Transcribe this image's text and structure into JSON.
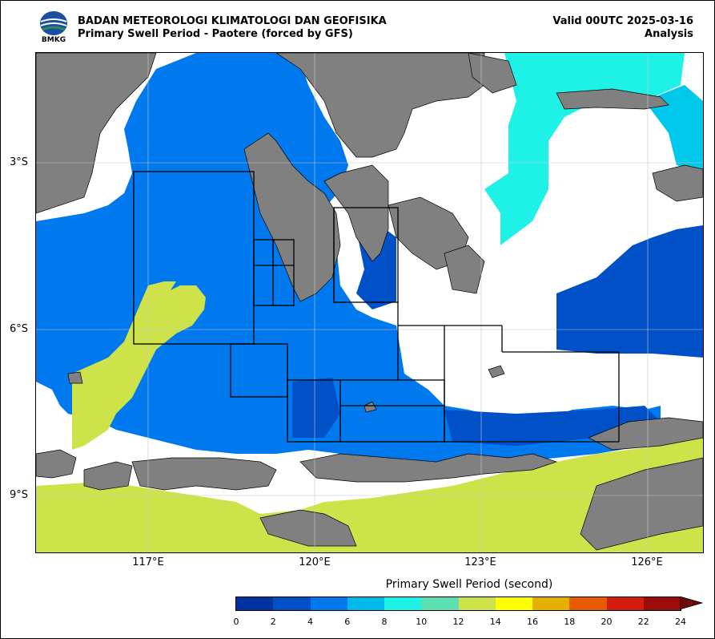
{
  "header": {
    "agency": "BADAN METEOROLOGI KLIMATOLOGI DAN GEOFISIKA",
    "product": "Primary Swell Period - Paotere (forced by GFS)",
    "valid": "Valid 00UTC 2025-03-16",
    "analysis": "Analysis",
    "logo_text": "BMKG"
  },
  "axes": {
    "y_ticks": [
      "3°S",
      "6°S",
      "9°S"
    ],
    "x_ticks": [
      "117°E",
      "120°E",
      "123°E",
      "126°E"
    ]
  },
  "colorbar": {
    "title": "Primary Swell Period (second)",
    "ticks": [
      "0",
      "2",
      "4",
      "6",
      "8",
      "10",
      "12",
      "14",
      "16",
      "18",
      "20",
      "22",
      "24"
    ],
    "colors": [
      "#0033a0",
      "#0050c8",
      "#0078ee",
      "#00b8ea",
      "#1ef2e6",
      "#5ce0b0",
      "#cee24a",
      "#ffff00",
      "#e6b000",
      "#e65a00",
      "#d21e10",
      "#9a0c0c"
    ]
  },
  "map_colors": {
    "land": "#808080",
    "sea_4_6": "#0078ee",
    "sea_2_4": "#0050c8",
    "sea_12_14": "#cee24a",
    "sea_8_10": "#1ef2e6",
    "sea_6_8": "#00c8ea",
    "no_data": "#ffffff"
  }
}
